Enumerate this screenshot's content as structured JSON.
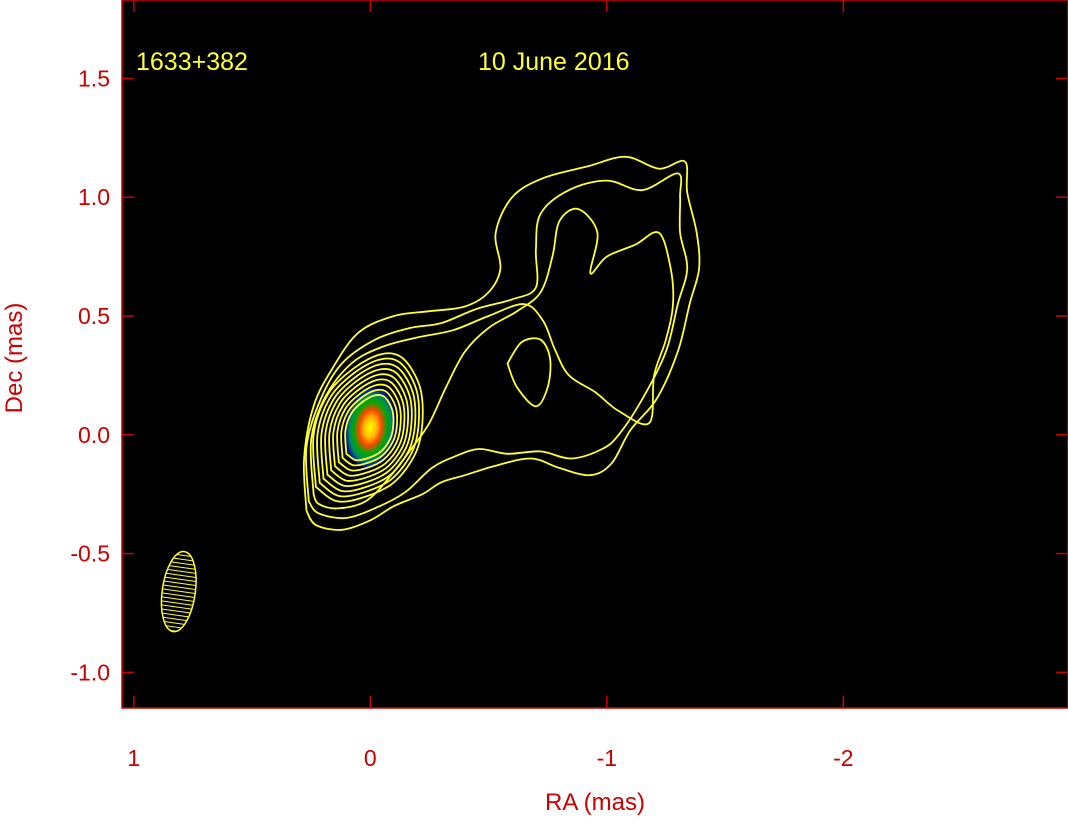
{
  "chart_data": {
    "type": "contour",
    "source_label": "1633+382",
    "date_label": "10 June 2016",
    "xlabel": "RA (mas)",
    "ylabel": "Dec (mas)",
    "xlim": [
      1.05,
      -2.95
    ],
    "ylim": [
      -1.15,
      1.83
    ],
    "x_ticks": [
      1,
      0,
      -1,
      -2
    ],
    "x_tick_labels": [
      "1",
      "0",
      "-1",
      "-2"
    ],
    "y_ticks": [
      1.5,
      1.0,
      0.5,
      0.0,
      -0.5,
      -1.0
    ],
    "y_tick_labels": [
      "1.5",
      "1.0",
      "0.5",
      "0.0",
      "-0.5",
      "-1.0"
    ],
    "x_reversed": true,
    "grid": false,
    "colors": {
      "background": "#ffffff",
      "plot_area": "#000000",
      "frame": "#cc0000",
      "tick_text": "#cc0000",
      "contour": "#ffff33",
      "annotation": "#ffff33"
    },
    "core": {
      "ra": 0.0,
      "dec": 0.03,
      "peak_color": "#ffff00"
    },
    "beam": {
      "center_ra": 0.81,
      "center_dec": -0.66,
      "major_mas": 0.34,
      "minor_mas": 0.14,
      "pa_deg": 8
    },
    "contours": [
      {
        "level": 1,
        "points": [
          [
            0.27,
            -0.32
          ],
          [
            0.28,
            -0.1
          ],
          [
            0.24,
            0.12
          ],
          [
            0.16,
            0.28
          ],
          [
            0.05,
            0.43
          ],
          [
            -0.1,
            0.5
          ],
          [
            -0.25,
            0.52
          ],
          [
            -0.4,
            0.54
          ],
          [
            -0.5,
            0.6
          ],
          [
            -0.55,
            0.7
          ],
          [
            -0.53,
            0.85
          ],
          [
            -0.6,
            1.0
          ],
          [
            -0.73,
            1.08
          ],
          [
            -0.92,
            1.13
          ],
          [
            -1.08,
            1.17
          ],
          [
            -1.22,
            1.12
          ],
          [
            -1.33,
            1.15
          ],
          [
            -1.34,
            1.02
          ],
          [
            -1.38,
            0.85
          ],
          [
            -1.39,
            0.7
          ],
          [
            -1.35,
            0.55
          ],
          [
            -1.3,
            0.35
          ],
          [
            -1.21,
            0.15
          ],
          [
            -1.1,
            0.02
          ],
          [
            -1.02,
            -0.12
          ],
          [
            -0.93,
            -0.17
          ],
          [
            -0.8,
            -0.14
          ],
          [
            -0.68,
            -0.1
          ],
          [
            -0.53,
            -0.13
          ],
          [
            -0.4,
            -0.17
          ],
          [
            -0.3,
            -0.2
          ],
          [
            -0.22,
            -0.25
          ],
          [
            -0.1,
            -0.3
          ],
          [
            0.0,
            -0.36
          ],
          [
            0.12,
            -0.4
          ],
          [
            0.23,
            -0.38
          ],
          [
            0.27,
            -0.32
          ]
        ]
      },
      {
        "level": 2,
        "points": [
          [
            0.26,
            -0.28
          ],
          [
            0.27,
            -0.05
          ],
          [
            0.21,
            0.15
          ],
          [
            0.12,
            0.3
          ],
          [
            -0.02,
            0.4
          ],
          [
            -0.17,
            0.45
          ],
          [
            -0.3,
            0.47
          ],
          [
            -0.45,
            0.53
          ],
          [
            -0.6,
            0.57
          ],
          [
            -0.7,
            0.62
          ],
          [
            -0.7,
            0.78
          ],
          [
            -0.72,
            0.93
          ],
          [
            -0.84,
            1.03
          ],
          [
            -1.0,
            1.07
          ],
          [
            -1.15,
            1.03
          ],
          [
            -1.3,
            1.1
          ],
          [
            -1.31,
            1.0
          ],
          [
            -1.31,
            0.85
          ],
          [
            -1.34,
            0.7
          ],
          [
            -1.3,
            0.55
          ],
          [
            -1.25,
            0.35
          ],
          [
            -1.15,
            0.15
          ],
          [
            -1.05,
            0.0
          ],
          [
            -0.98,
            -0.06
          ],
          [
            -0.85,
            -0.1
          ],
          [
            -0.72,
            -0.07
          ],
          [
            -0.58,
            -0.08
          ],
          [
            -0.46,
            -0.06
          ],
          [
            -0.36,
            -0.09
          ],
          [
            -0.26,
            -0.14
          ],
          [
            -0.15,
            -0.24
          ],
          [
            -0.04,
            -0.3
          ],
          [
            0.1,
            -0.35
          ],
          [
            0.22,
            -0.33
          ],
          [
            0.26,
            -0.28
          ]
        ]
      },
      {
        "level": 3,
        "points": [
          [
            0.24,
            -0.25
          ],
          [
            0.25,
            -0.02
          ],
          [
            0.19,
            0.16
          ],
          [
            0.08,
            0.3
          ],
          [
            -0.05,
            0.37
          ],
          [
            -0.2,
            0.41
          ],
          [
            -0.35,
            0.44
          ],
          [
            -0.5,
            0.5
          ],
          [
            -0.65,
            0.55
          ],
          [
            -0.73,
            0.48
          ],
          [
            -0.78,
            0.36
          ],
          [
            -0.84,
            0.25
          ],
          [
            -0.95,
            0.18
          ],
          [
            -1.05,
            0.1
          ],
          [
            -1.18,
            0.05
          ],
          [
            -1.2,
            0.25
          ],
          [
            -1.25,
            0.4
          ],
          [
            -1.28,
            0.55
          ],
          [
            -1.27,
            0.7
          ],
          [
            -1.22,
            0.85
          ],
          [
            -1.12,
            0.8
          ],
          [
            -1.0,
            0.75
          ],
          [
            -0.93,
            0.68
          ],
          [
            -0.96,
            0.85
          ],
          [
            -0.88,
            0.95
          ],
          [
            -0.8,
            0.9
          ],
          [
            -0.77,
            0.75
          ],
          [
            -0.72,
            0.6
          ],
          [
            -0.62,
            0.52
          ],
          [
            -0.5,
            0.45
          ],
          [
            -0.4,
            0.35
          ],
          [
            -0.32,
            0.2
          ],
          [
            -0.25,
            0.05
          ],
          [
            -0.18,
            -0.05
          ],
          [
            -0.08,
            -0.18
          ],
          [
            0.02,
            -0.28
          ],
          [
            0.14,
            -0.31
          ],
          [
            0.22,
            -0.29
          ],
          [
            0.24,
            -0.25
          ]
        ]
      },
      {
        "level": 4,
        "points": [
          [
            -0.58,
            0.3
          ],
          [
            -0.62,
            0.2
          ],
          [
            -0.7,
            0.12
          ],
          [
            -0.75,
            0.2
          ],
          [
            -0.76,
            0.32
          ],
          [
            -0.72,
            0.4
          ],
          [
            -0.64,
            0.39
          ],
          [
            -0.58,
            0.3
          ]
        ]
      },
      {
        "level": 5,
        "points": [
          [
            0.23,
            -0.22
          ],
          [
            0.24,
            0.0
          ],
          [
            0.18,
            0.17
          ],
          [
            0.07,
            0.28
          ],
          [
            -0.05,
            0.34
          ],
          [
            -0.14,
            0.32
          ],
          [
            -0.21,
            0.2
          ],
          [
            -0.22,
            0.05
          ],
          [
            -0.19,
            -0.08
          ],
          [
            -0.1,
            -0.2
          ],
          [
            0.02,
            -0.26
          ],
          [
            0.14,
            -0.28
          ],
          [
            0.23,
            -0.22
          ]
        ],
        "inner_scale": [
          1.0,
          0.93,
          0.86,
          0.79,
          0.72,
          0.65,
          0.58,
          0.51,
          0.44
        ]
      }
    ]
  }
}
